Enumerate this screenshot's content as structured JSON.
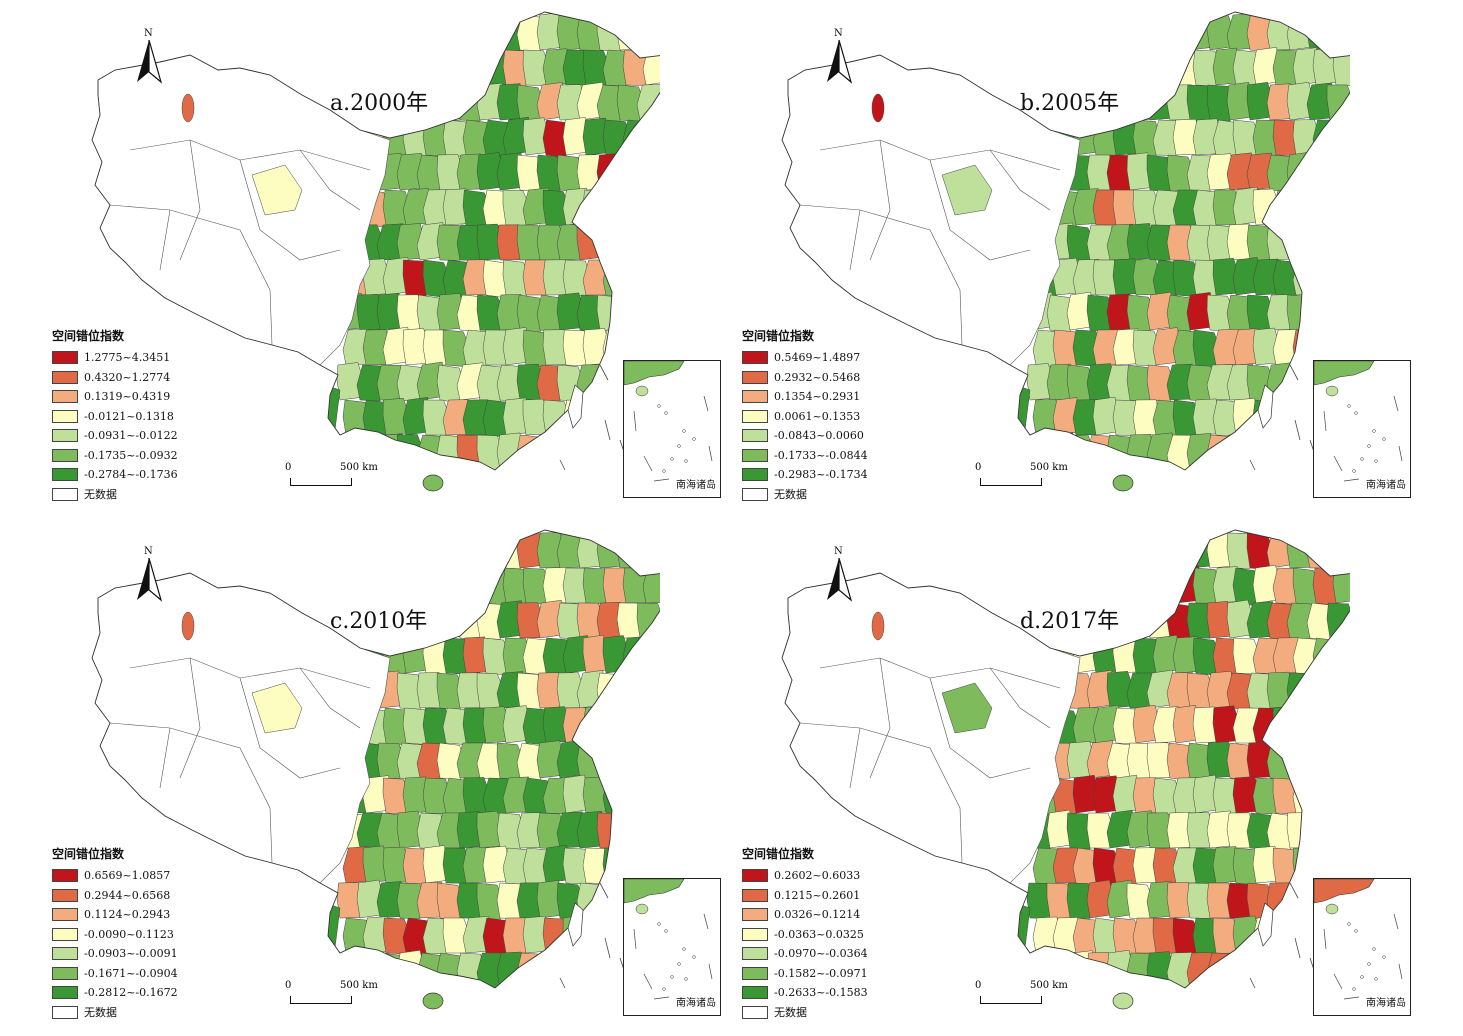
{
  "colors": [
    "#c0161b",
    "#df6a45",
    "#f2ac7e",
    "#fdfcc1",
    "#bfe09a",
    "#7ebb5c",
    "#3a9834",
    "#ffffff"
  ],
  "panels": [
    {
      "id": "a",
      "title": "a.2000年",
      "north": "N",
      "legend_title": "空间错位指数",
      "legend": [
        "1.2775~4.3451",
        "0.4320~1.2774",
        "0.1319~0.4319",
        "-0.0121~0.1318",
        "-0.0931~-0.0122",
        "-0.1735~-0.0932",
        "-0.2784~-0.1736",
        "无数据"
      ],
      "scale_zero": "0",
      "scale_dist": "500 km",
      "inset_label": "南海诸岛"
    },
    {
      "id": "b",
      "title": "b.2005年",
      "north": "N",
      "legend_title": "空间错位指数",
      "legend": [
        "0.5469~1.4897",
        "0.2932~0.5468",
        "0.1354~0.2931",
        "0.0061~0.1353",
        "-0.0843~0.0060",
        "-0.1733~-0.0844",
        "-0.2983~-0.1734",
        "无数据"
      ],
      "scale_zero": "0",
      "scale_dist": "500 km",
      "inset_label": "南海诸岛"
    },
    {
      "id": "c",
      "title": "c.2010年",
      "north": "N",
      "legend_title": "空间错位指数",
      "legend": [
        "0.6569~1.0857",
        "0.2944~0.6568",
        "0.1124~0.2943",
        "-0.0090~0.1123",
        "-0.0903~-0.0091",
        "-0.1671~-0.0904",
        "-0.2812~-0.1672",
        "无数据"
      ],
      "scale_zero": "0",
      "scale_dist": "500 km",
      "inset_label": "南海诸岛"
    },
    {
      "id": "d",
      "title": "d.2017年",
      "north": "N",
      "legend_title": "空间错位指数",
      "legend": [
        "0.2602~0.6033",
        "0.1215~0.2601",
        "0.0326~0.1214",
        "-0.0363~0.0325",
        "-0.0970~-0.0364",
        "-0.1582~-0.0971",
        "-0.2633~-0.1583",
        "无数据"
      ],
      "scale_zero": "0",
      "scale_dist": "500 km",
      "inset_label": "南海诸岛"
    }
  ]
}
